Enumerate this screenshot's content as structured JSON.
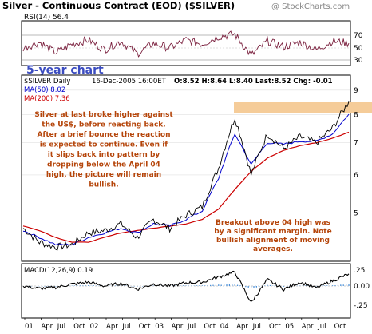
{
  "header": {
    "title": "Silver - Continuous Contract (EOD) ($SILVER)",
    "watermark": "@ StockCharts.com"
  },
  "rsi_panel": {
    "label": "RSI(14) 56.4",
    "ticks": [
      "70",
      "50",
      "30"
    ],
    "badge": "5-year chart"
  },
  "price_panel": {
    "info_symbol": "$SILVER Daily",
    "info_date": "16-Dec-2005 16:00ET",
    "info_values": "O:8.52 H:8.64 L:8.40 Last:8.52 Chg: -0.01",
    "ma50_label": "MA(50) 8.02",
    "ma200_label": "MA(200) 7.36",
    "annotation_main": [
      "Silver at last broke higher against",
      "the US$, before reacting back.",
      "After a brief bounce the reaction",
      "is expected to continue. Even if",
      "it slips back into pattern by",
      "dropping below the April 04",
      "high, the picture will remain",
      "bullish."
    ],
    "annotation_breakout": [
      "Breakout above 04 high was",
      "by a significant margin. Note",
      "bullish alignment of moving",
      "averages."
    ],
    "y_ticks": [
      "9",
      "8",
      "7",
      "6",
      "5"
    ]
  },
  "macd_panel": {
    "label": "MACD(12,26,9) 0.19",
    "ticks": [
      ".25",
      "0.00",
      "-.25"
    ]
  },
  "x_axis": {
    "labels": [
      "01",
      "Apr",
      "Jul",
      "Oct",
      "02",
      "Apr",
      "Jul",
      "Oct",
      "03",
      "Apr",
      "Jul",
      "Oct",
      "04",
      "Apr",
      "Jul",
      "Oct",
      "05",
      "Apr",
      "Jul",
      "Oct"
    ]
  },
  "colors": {
    "price": "#000000",
    "ma50": "#0000cc",
    "ma200": "#cc0000",
    "rsi": "#7a1f3d",
    "highlight": "#f5cc99",
    "annotation_text": "#b5450a",
    "badge_text": "#3b4cc0",
    "title_bg": "#ffffff"
  },
  "chart_data": {
    "type": "line",
    "x": [
      "2001-01",
      "2001-04",
      "2001-07",
      "2001-10",
      "2002-01",
      "2002-04",
      "2002-07",
      "2002-10",
      "2003-01",
      "2003-04",
      "2003-07",
      "2003-10",
      "2004-01",
      "2004-04",
      "2004-07",
      "2004-10",
      "2005-01",
      "2005-04",
      "2005-07",
      "2005-10",
      "2005-12"
    ],
    "series": [
      {
        "name": "$SILVER",
        "values": [
          4.65,
          4.35,
          4.25,
          4.3,
          4.55,
          4.6,
          4.75,
          4.45,
          4.85,
          4.65,
          4.95,
          5.15,
          6.2,
          7.9,
          6.0,
          7.3,
          6.8,
          7.2,
          7.0,
          7.5,
          8.52
        ]
      },
      {
        "name": "MA(50)",
        "values": [
          4.6,
          4.45,
          4.3,
          4.3,
          4.45,
          4.55,
          4.65,
          4.55,
          4.75,
          4.7,
          4.85,
          5.05,
          5.9,
          7.3,
          6.3,
          7.0,
          6.95,
          7.05,
          7.05,
          7.3,
          8.02
        ]
      },
      {
        "name": "MA(200)",
        "values": [
          4.7,
          4.6,
          4.45,
          4.35,
          4.35,
          4.45,
          4.55,
          4.6,
          4.65,
          4.7,
          4.75,
          4.85,
          5.1,
          5.6,
          6.1,
          6.5,
          6.75,
          6.9,
          7.0,
          7.15,
          7.36
        ]
      }
    ],
    "rsi": [
      48,
      58,
      40,
      55,
      62,
      45,
      60,
      38,
      56,
      48,
      62,
      55,
      68,
      72,
      35,
      60,
      50,
      58,
      45,
      60,
      56.4
    ],
    "macd": [
      0.0,
      -0.04,
      -0.02,
      0.03,
      0.06,
      0.0,
      0.04,
      -0.05,
      0.03,
      0.0,
      0.05,
      0.06,
      0.14,
      0.22,
      -0.26,
      0.1,
      -0.05,
      0.06,
      -0.03,
      0.08,
      0.19
    ],
    "ylim": [
      4.0,
      9.6
    ],
    "y_scale": "log",
    "title": "Silver - Continuous Contract (EOD) ($SILVER)"
  }
}
